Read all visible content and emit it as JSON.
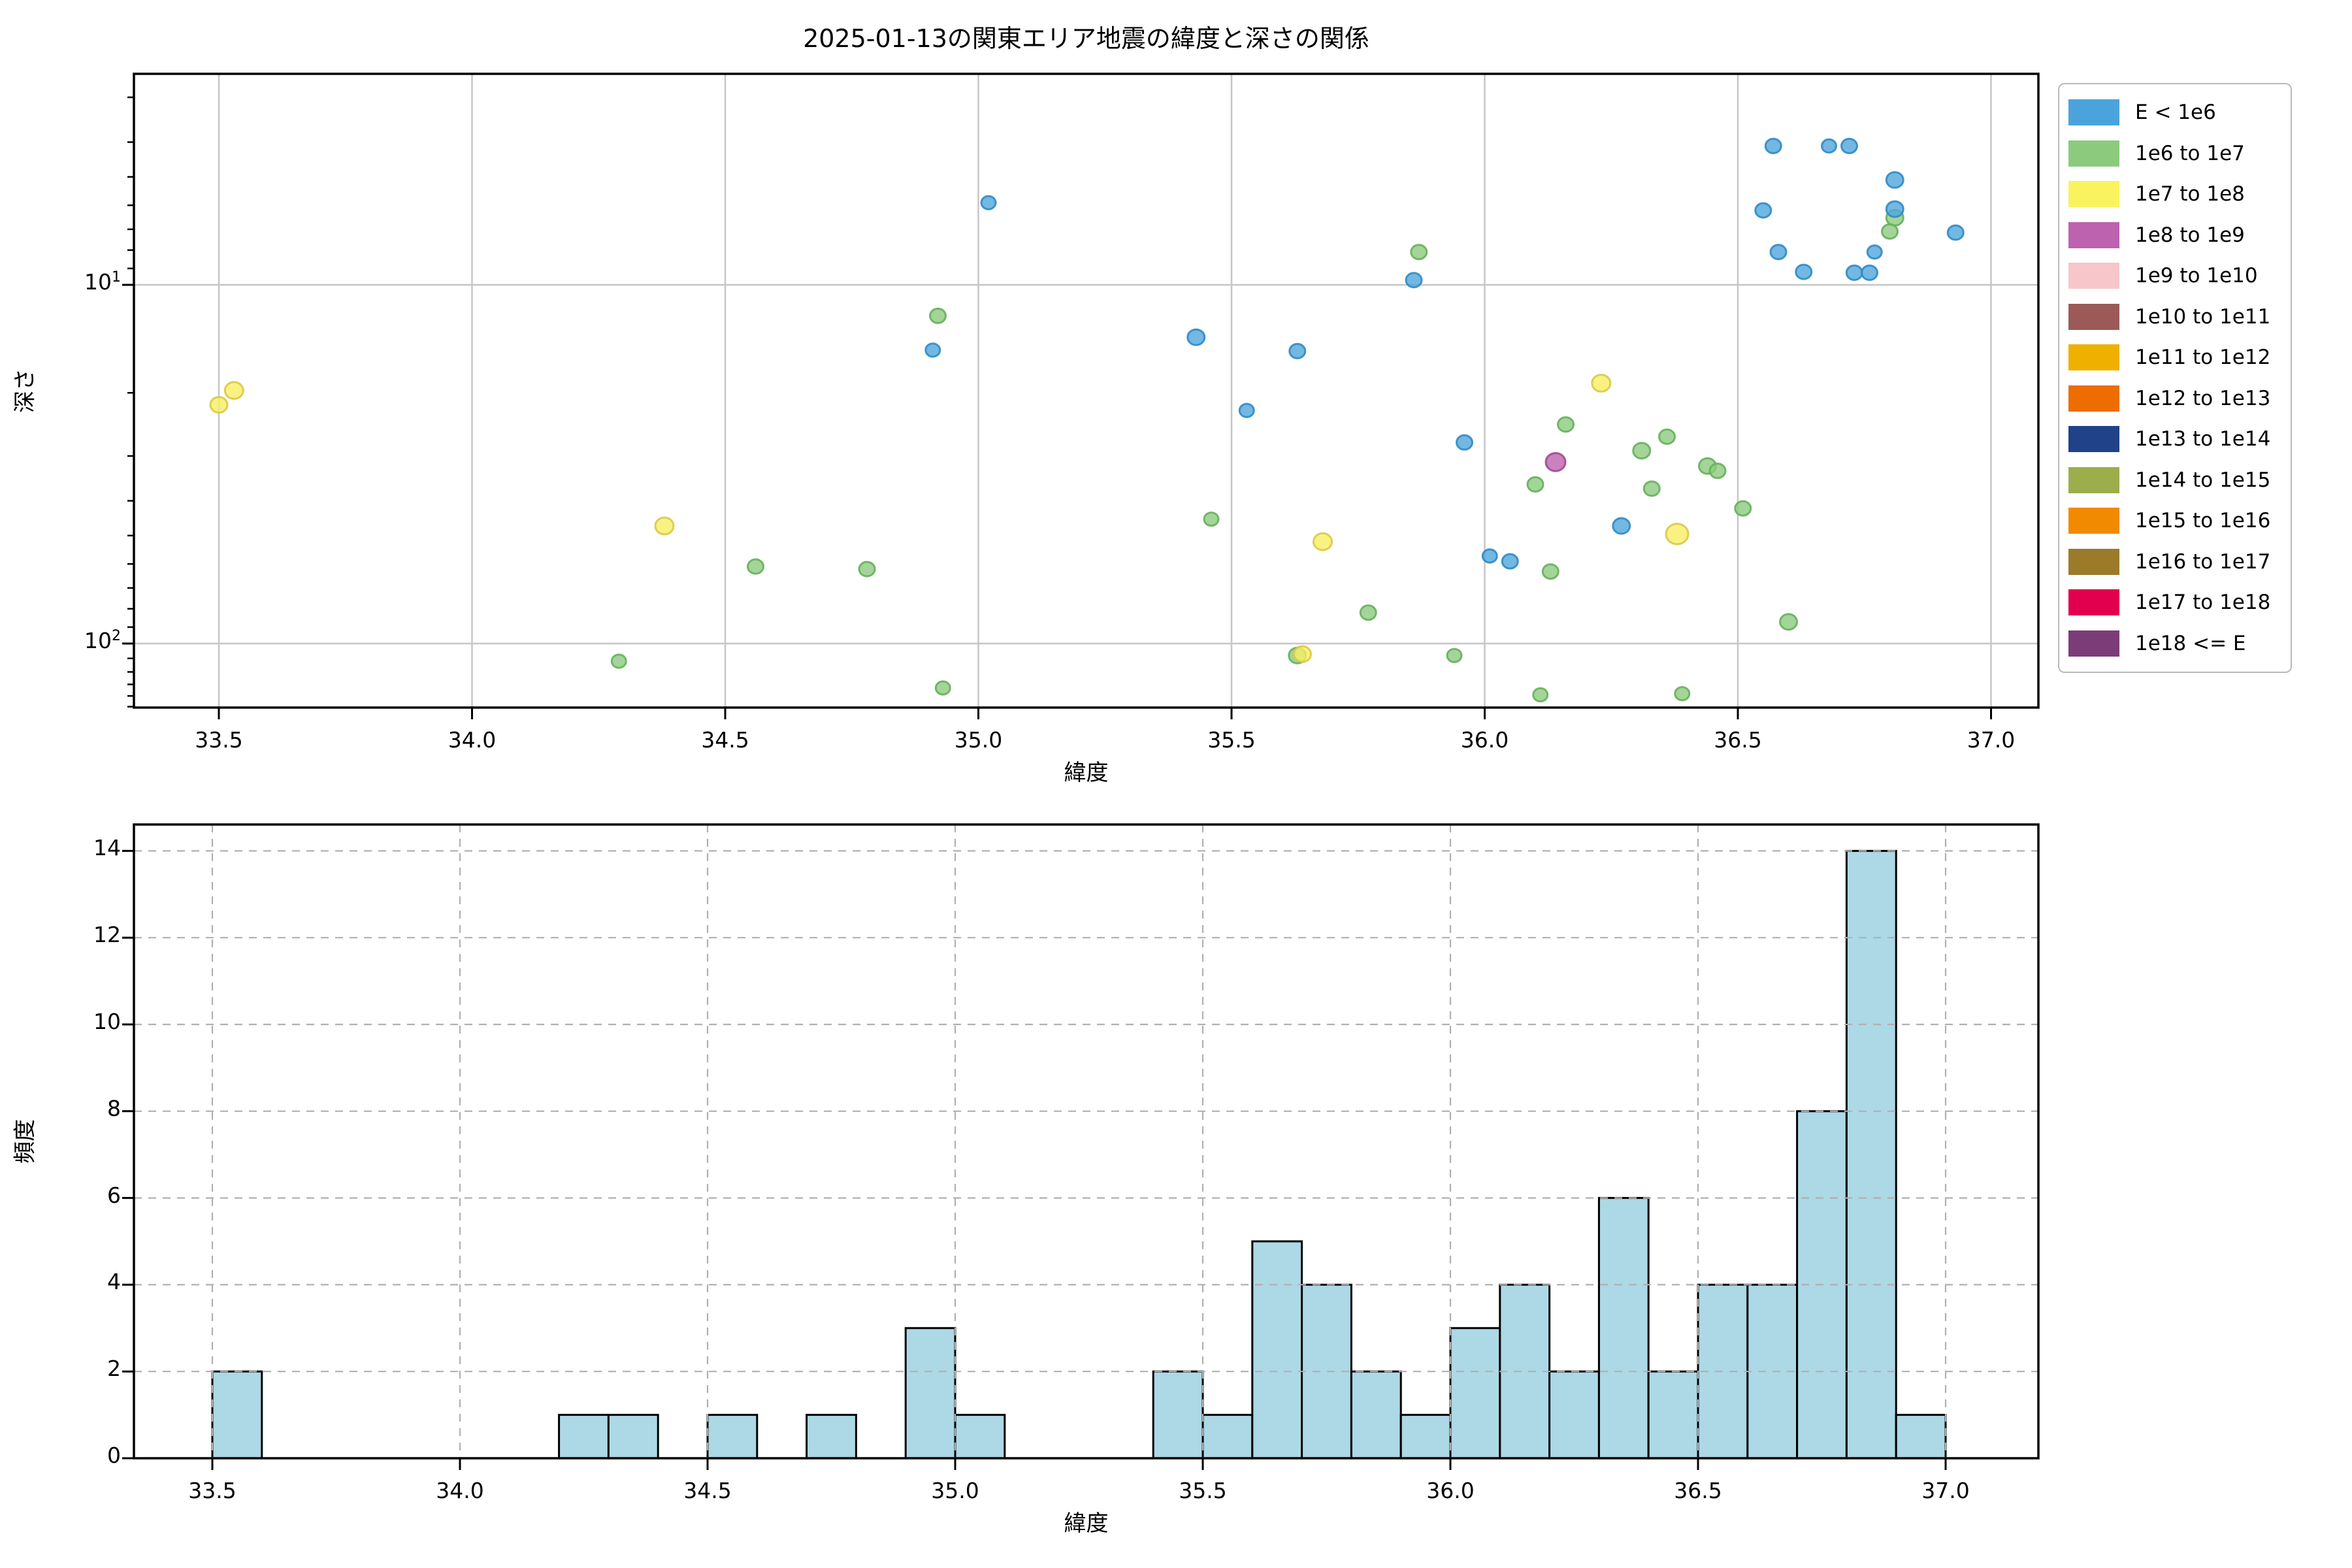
{
  "title": "2025-01-13の関東エリア地震の緯度と深さの関係",
  "scatter": {
    "xlabel": "緯度",
    "ylabel": "深さ",
    "x_ticks": [
      33.5,
      34.0,
      34.5,
      35.0,
      35.5,
      36.0,
      36.5,
      37.0
    ],
    "y_ticks": [
      {
        "base": "10",
        "exp": "1",
        "value": 10
      },
      {
        "base": "10",
        "exp": "2",
        "value": 100
      }
    ],
    "y_minor_ticks": [
      3,
      4,
      5,
      6,
      7,
      8,
      9,
      20,
      30,
      40,
      50,
      60,
      70,
      80,
      90,
      110,
      120,
      130,
      140,
      150
    ]
  },
  "histogram": {
    "xlabel": "緯度",
    "ylabel": "頻度",
    "x_ticks": [
      33.5,
      34.0,
      34.5,
      35.0,
      35.5,
      36.0,
      36.5,
      37.0
    ],
    "y_ticks": [
      0,
      2,
      4,
      6,
      8,
      10,
      12,
      14
    ],
    "bar_fill": "#ADD8E6",
    "bar_edge": "#000000"
  },
  "legend": {
    "entries": [
      {
        "label": "E < 1e6",
        "color": "#4BA3DB"
      },
      {
        "label": "1e6 to 1e7",
        "color": "#8CCA7E"
      },
      {
        "label": "1e7 to 1e8",
        "color": "#F9F35F"
      },
      {
        "label": "1e8 to 1e9",
        "color": "#BD62AE"
      },
      {
        "label": "1e9 to 1e10",
        "color": "#F6C6CA"
      },
      {
        "label": "1e10 to 1e11",
        "color": "#9B5A58"
      },
      {
        "label": "1e11 to 1e12",
        "color": "#F0B000"
      },
      {
        "label": "1e12 to 1e13",
        "color": "#ED6D00"
      },
      {
        "label": "1e13 to 1e14",
        "color": "#1F4289"
      },
      {
        "label": "1e14 to 1e15",
        "color": "#9CAD4B"
      },
      {
        "label": "1e15 to 1e16",
        "color": "#F28A00"
      },
      {
        "label": "1e16 to 1e17",
        "color": "#9B7B2A"
      },
      {
        "label": "1e17 to 1e18",
        "color": "#E2004E"
      },
      {
        "label": "1e18 <= E",
        "color": "#7B3C78"
      }
    ]
  },
  "chart_data": [
    {
      "type": "scatter",
      "title": "2025-01-13の関東エリア地震の緯度と深さの関係",
      "xlabel": "緯度",
      "ylabel": "深さ",
      "xlim": [
        33.33,
        37.07
      ],
      "ylim": [
        2.58,
        151
      ],
      "y_scale": "log-inverted",
      "grid": true,
      "legend_position": "outside-right",
      "series": [
        {
          "name": "E < 1e6",
          "color": "#4FA6DB",
          "edge": "#3089C8",
          "points": [
            [
              35.02,
              5.9,
              11
            ],
            [
              34.91,
              15.2,
              11
            ],
            [
              35.43,
              14.0,
              13
            ],
            [
              35.63,
              15.3,
              12
            ],
            [
              35.53,
              22.4,
              11
            ],
            [
              35.96,
              27.5,
              12
            ],
            [
              36.01,
              57,
              11
            ],
            [
              36.05,
              59,
              12
            ],
            [
              36.27,
              47,
              13
            ],
            [
              35.86,
              9.7,
              12
            ],
            [
              36.57,
              4.1,
              12
            ],
            [
              36.68,
              4.1,
              11
            ],
            [
              36.72,
              4.1,
              12
            ],
            [
              36.81,
              5.1,
              13
            ],
            [
              36.55,
              6.2,
              12
            ],
            [
              36.81,
              6.15,
              13
            ],
            [
              36.93,
              7.15,
              12
            ],
            [
              36.58,
              8.1,
              12
            ],
            [
              36.77,
              8.1,
              11
            ],
            [
              36.63,
              9.2,
              12
            ],
            [
              36.73,
              9.25,
              12
            ],
            [
              36.76,
              9.25,
              12
            ]
          ]
        },
        {
          "name": "1e6 to 1e7",
          "color": "#8CCA7E",
          "edge": "#67AF5C",
          "points": [
            [
              34.29,
              112,
              11
            ],
            [
              34.56,
              61,
              12
            ],
            [
              34.78,
              62,
              12
            ],
            [
              34.92,
              12.2,
              12
            ],
            [
              34.93,
              133,
              11
            ],
            [
              35.46,
              45,
              11
            ],
            [
              35.63,
              108,
              13
            ],
            [
              35.77,
              82,
              12
            ],
            [
              35.87,
              8.1,
              12
            ],
            [
              35.94,
              108,
              11
            ],
            [
              36.1,
              36,
              12
            ],
            [
              36.11,
              139,
              11
            ],
            [
              36.39,
              138,
              11
            ],
            [
              36.13,
              63,
              12
            ],
            [
              36.16,
              24.5,
              12
            ],
            [
              36.36,
              26.5,
              12
            ],
            [
              36.31,
              29,
              13
            ],
            [
              36.44,
              32,
              13
            ],
            [
              36.46,
              33,
              12
            ],
            [
              36.33,
              37,
              12
            ],
            [
              36.51,
              42,
              12
            ],
            [
              36.6,
              87,
              13
            ],
            [
              36.81,
              6.5,
              13
            ],
            [
              36.8,
              7.1,
              12
            ]
          ]
        },
        {
          "name": "1e7 to 1e8",
          "color": "#F7EF63",
          "edge": "#D9C945",
          "points": [
            [
              33.5,
              21.6,
              13
            ],
            [
              33.53,
              19.7,
              14
            ],
            [
              34.38,
              47,
              14
            ],
            [
              35.64,
              107,
              13
            ],
            [
              35.68,
              52,
              14
            ],
            [
              36.23,
              18.8,
              14
            ],
            [
              36.38,
              49.5,
              17
            ]
          ]
        },
        {
          "name": "1e8 to 1e9",
          "color": "#BD62AE",
          "edge": "#9E4890",
          "points": [
            [
              36.14,
              31.2,
              15
            ]
          ]
        }
      ]
    },
    {
      "type": "histogram",
      "xlabel": "緯度",
      "ylabel": "頻度",
      "xlim": [
        33.33,
        37.08
      ],
      "ylim": [
        0,
        14.6
      ],
      "grid": "dashed",
      "bin_start": 33.5,
      "bin_width": 0.1,
      "counts": [
        2,
        0,
        0,
        0,
        0,
        0,
        0,
        1,
        1,
        0,
        1,
        0,
        1,
        0,
        3,
        1,
        0,
        0,
        0,
        2,
        1,
        5,
        4,
        2,
        1,
        3,
        4,
        2,
        6,
        2,
        4,
        4,
        8,
        14,
        1
      ]
    }
  ]
}
